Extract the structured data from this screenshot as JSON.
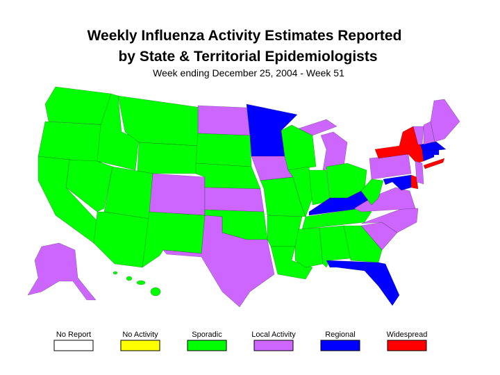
{
  "header": {
    "title_line1": "Weekly Influenza Activity Estimates Reported",
    "title_line2": "by State & Territorial Epidemiologists",
    "subtitle": "Week ending December 25, 2004 - Week 51"
  },
  "legend": [
    {
      "label": "No Report",
      "color": "#ffffff"
    },
    {
      "label": "No Activity",
      "color": "#ffff00"
    },
    {
      "label": "Sporadic",
      "color": "#00ff00"
    },
    {
      "label": "Local Activity",
      "color": "#cc66ff"
    },
    {
      "label": "Regional",
      "color": "#0000ff"
    },
    {
      "label": "Widespread",
      "color": "#ff0000"
    }
  ]
}
